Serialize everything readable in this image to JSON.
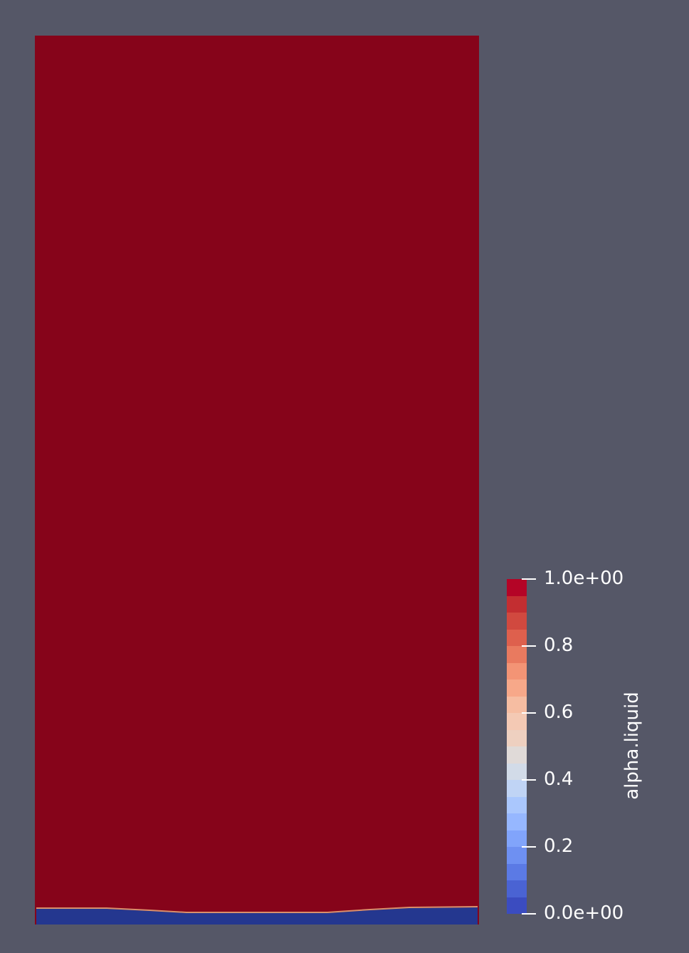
{
  "viewer": {
    "background_color": "#555767",
    "scalar_field": "alpha.liquid"
  },
  "domain_render": {
    "fill_color": "#86041a",
    "interface_color": "#d9906c",
    "bottom_layer_color": "#24378f"
  },
  "colorbar": {
    "title": "alpha.liquid",
    "range": [
      0,
      1
    ],
    "ticks": [
      {
        "value": 1.0,
        "label": "1.0e+00"
      },
      {
        "value": 0.8,
        "label": "0.8"
      },
      {
        "value": 0.6,
        "label": "0.6"
      },
      {
        "value": 0.4,
        "label": "0.4"
      },
      {
        "value": 0.2,
        "label": "0.2"
      },
      {
        "value": 0.0,
        "label": "0.0e+00"
      }
    ],
    "bands_top_to_bottom": [
      "#b40426",
      "#c32e31",
      "#d1493f",
      "#de604d",
      "#e97a5f",
      "#f39475",
      "#f7a889",
      "#f6bda2",
      "#f4c9b4",
      "#eed0c0",
      "#e0dad8",
      "#d2dbe8",
      "#c0d4f5",
      "#aac7fd",
      "#96b7ff",
      "#81a4fb",
      "#6e90f2",
      "#5b7ae5",
      "#4a63d3",
      "#3b4cc0"
    ]
  }
}
